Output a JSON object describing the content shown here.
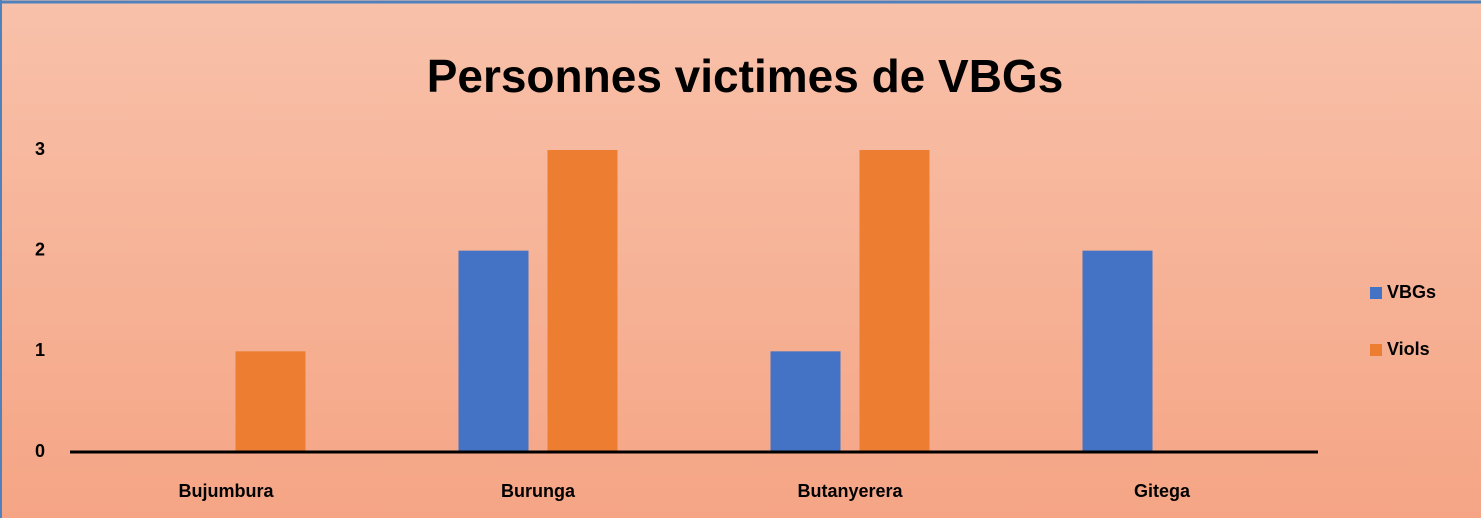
{
  "chart_data": {
    "type": "bar",
    "title": "Personnes victimes de VBGs",
    "categories": [
      "Bujumbura",
      "Burunga",
      "Butanyerera",
      "Gitega"
    ],
    "series": [
      {
        "name": "VBGs",
        "color": "#4472c4",
        "values": [
          0,
          2,
          1,
          2
        ]
      },
      {
        "name": "Viols",
        "color": "#ed7d31",
        "values": [
          1,
          3,
          3,
          0
        ]
      }
    ],
    "ylim": [
      0,
      3
    ],
    "yticks": [
      0,
      1,
      2,
      3
    ],
    "grid": false,
    "legend": "right"
  }
}
